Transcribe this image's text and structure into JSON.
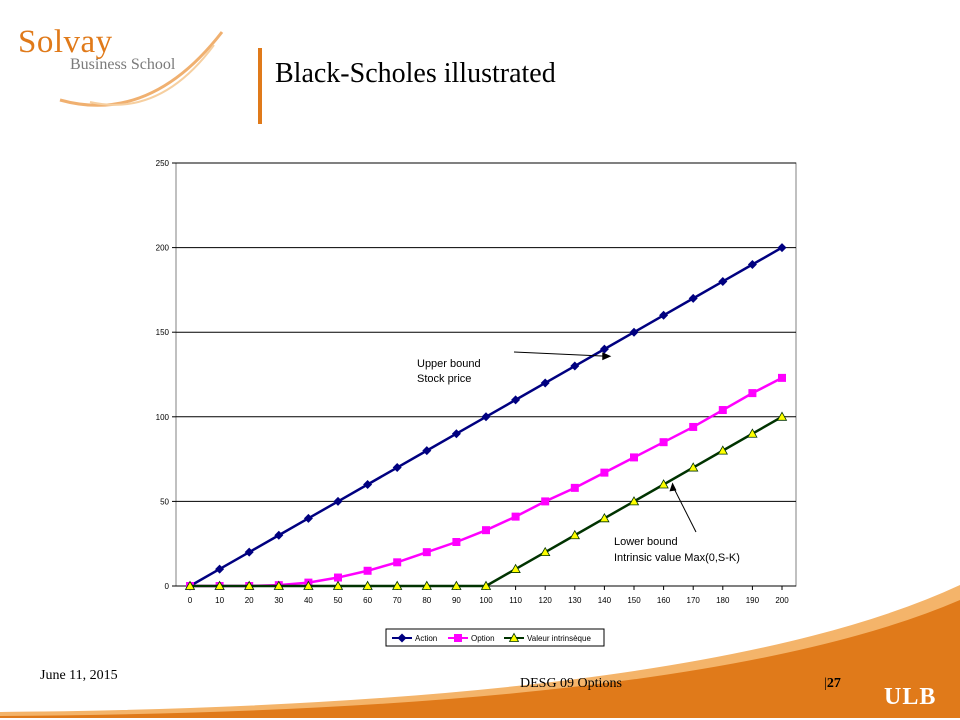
{
  "header": {
    "logo_name": "Solvay",
    "logo_sub": "Business School",
    "title": "Black-Scholes illustrated"
  },
  "footer": {
    "date": "June 11, 2015",
    "course": "DESG 09 Options",
    "page": "27",
    "ulb": "ULB"
  },
  "colors": {
    "accent": "#e07a1a",
    "action": "#000080",
    "option": "#ff00ff",
    "intrinsic": "#003300",
    "intrinsic_marker": "#ffff00"
  },
  "chart_data": {
    "type": "line",
    "x": [
      0,
      10,
      20,
      30,
      40,
      50,
      60,
      70,
      80,
      90,
      100,
      110,
      120,
      130,
      140,
      150,
      160,
      170,
      180,
      190,
      200
    ],
    "series": [
      {
        "name": "Action",
        "marker": "diamond",
        "values": [
          0,
          10,
          20,
          30,
          40,
          50,
          60,
          70,
          80,
          90,
          100,
          110,
          120,
          130,
          140,
          150,
          160,
          170,
          180,
          190,
          200
        ]
      },
      {
        "name": "Option",
        "marker": "square",
        "values": [
          0,
          0,
          0,
          0.5,
          2,
          5,
          9,
          14,
          20,
          26,
          33,
          41,
          50,
          58,
          67,
          76,
          85,
          94,
          104,
          114,
          123
        ]
      },
      {
        "name": "Valeur intrinsèque",
        "marker": "triangle",
        "values": [
          0,
          0,
          0,
          0,
          0,
          0,
          0,
          0,
          0,
          0,
          0,
          10,
          20,
          30,
          40,
          50,
          60,
          70,
          80,
          90,
          100
        ]
      }
    ],
    "ylim": [
      0,
      250
    ],
    "yticks": [
      0,
      50,
      100,
      150,
      200,
      250
    ],
    "grid": true,
    "legend": "bottom",
    "annotations": [
      {
        "lines": [
          "Upper bound",
          "Stock price"
        ],
        "x": 143,
        "y": 137
      },
      {
        "lines": [
          "Lower bound",
          "Intrinsic value Max(0,S-K)"
        ],
        "x": 163,
        "y": 63
      }
    ]
  }
}
